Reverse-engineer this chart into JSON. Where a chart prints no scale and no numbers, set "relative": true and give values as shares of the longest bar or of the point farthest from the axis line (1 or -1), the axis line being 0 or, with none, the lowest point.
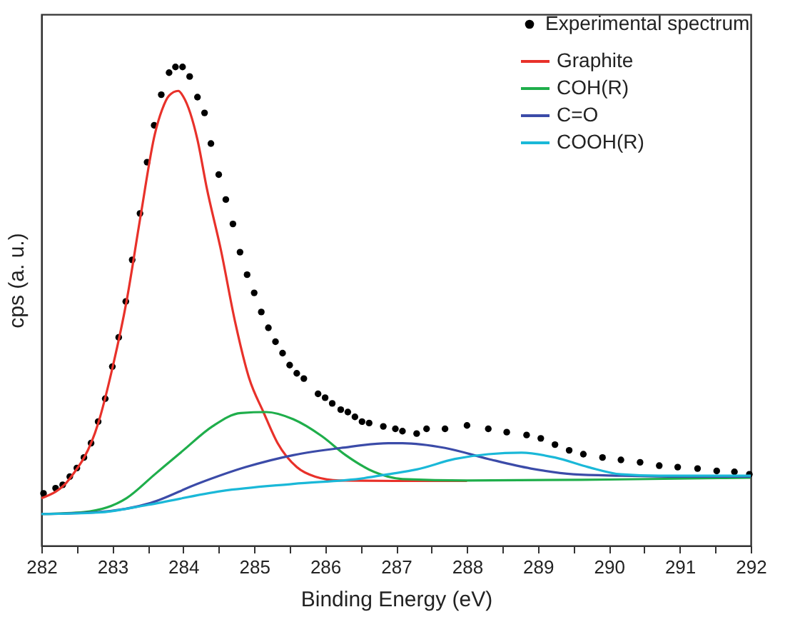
{
  "chart_data": {
    "type": "line",
    "relative": true,
    "xlabel": "Binding Energy (eV)",
    "ylabel": "cps (a. u.)",
    "xlim": [
      282,
      292
    ],
    "xticks": [
      282,
      {
        "value": 282.5,
        "label": null
      },
      283,
      {
        "value": 283.5,
        "label": null
      },
      284,
      {
        "value": 284.5,
        "label": null
      },
      285,
      {
        "value": 285.5,
        "label": null
      },
      286,
      {
        "value": 286.5,
        "label": null
      },
      287,
      {
        "value": 287.5,
        "label": null
      },
      288,
      {
        "value": 288.5,
        "label": null
      },
      289,
      {
        "value": 289.5,
        "label": null
      },
      290,
      {
        "value": 290.5,
        "label": null
      },
      291,
      {
        "value": 291.5,
        "label": null
      },
      292
    ],
    "tick_labels": "x",
    "grid": false,
    "legend": "top right",
    "marker": "none",
    "line_style": "solid",
    "series": [
      {
        "name": "Experimental spectrum",
        "type": "scatter",
        "marker": "circle",
        "color": "#000000",
        "x": [
          282.03,
          282.2,
          282.3,
          282.4,
          282.5,
          282.6,
          282.7,
          282.8,
          282.9,
          283.0,
          283.09,
          283.19,
          283.28,
          283.39,
          283.49,
          283.59,
          283.69,
          283.8,
          283.89,
          283.99,
          284.09,
          284.2,
          284.3,
          284.39,
          284.5,
          284.6,
          284.7,
          284.8,
          284.9,
          285.0,
          285.1,
          285.2,
          285.3,
          285.4,
          285.5,
          285.6,
          285.7,
          285.9,
          286.0,
          286.1,
          286.22,
          286.32,
          286.42,
          286.52,
          286.62,
          286.82,
          286.99,
          287.09,
          287.29,
          287.43,
          287.69,
          288.0,
          288.3,
          288.56,
          288.84,
          289.04,
          289.24,
          289.44,
          289.64,
          289.91,
          290.17,
          290.44,
          290.71,
          290.97,
          291.25,
          291.52,
          291.77,
          291.98
        ],
        "values": [
          0.109,
          0.12,
          0.127,
          0.144,
          0.162,
          0.184,
          0.214,
          0.259,
          0.307,
          0.374,
          0.435,
          0.51,
          0.597,
          0.694,
          0.801,
          0.878,
          0.942,
          0.988,
          1.0,
          1.0,
          0.98,
          0.937,
          0.904,
          0.84,
          0.775,
          0.723,
          0.672,
          0.613,
          0.566,
          0.528,
          0.488,
          0.455,
          0.426,
          0.402,
          0.377,
          0.36,
          0.349,
          0.317,
          0.309,
          0.297,
          0.284,
          0.279,
          0.269,
          0.259,
          0.256,
          0.249,
          0.244,
          0.239,
          0.234,
          0.244,
          0.244,
          0.251,
          0.244,
          0.237,
          0.231,
          0.224,
          0.211,
          0.199,
          0.191,
          0.184,
          0.179,
          0.174,
          0.167,
          0.164,
          0.161,
          0.156,
          0.154,
          0.149
        ]
      },
      {
        "name": "Graphite",
        "color": "#e8312a",
        "x": [
          282.0,
          282.4,
          282.8,
          283.0,
          283.2,
          283.4,
          283.6,
          283.7,
          283.8,
          283.93,
          284.0,
          284.2,
          284.33,
          284.53,
          284.73,
          284.93,
          285.13,
          285.33,
          285.6,
          285.86,
          286.2,
          287.0,
          288.0
        ],
        "values": [
          0.099,
          0.14,
          0.255,
          0.37,
          0.51,
          0.69,
          0.86,
          0.91,
          0.94,
          0.95,
          0.938,
          0.848,
          0.748,
          0.618,
          0.468,
          0.349,
          0.279,
          0.214,
          0.164,
          0.144,
          0.136,
          0.135,
          0.135
        ]
      },
      {
        "name": "COH(R)",
        "color": "#1fae4b",
        "x": [
          282.0,
          282.6,
          283.2,
          283.6,
          284.0,
          284.41,
          284.81,
          285.17,
          285.55,
          285.95,
          286.29,
          286.69,
          287.09,
          288.0,
          290.0,
          292.0
        ],
        "values": [
          0.066,
          0.07,
          0.099,
          0.149,
          0.199,
          0.249,
          0.277,
          0.279,
          0.264,
          0.229,
          0.189,
          0.154,
          0.139,
          0.136,
          0.138,
          0.142
        ]
      },
      {
        "name": "C=O",
        "color": "#3b4ba8",
        "x": [
          282.0,
          282.8,
          283.54,
          284.2,
          284.88,
          285.55,
          286.22,
          286.89,
          287.09,
          287.69,
          288.3,
          288.9,
          289.5,
          290.17,
          291.0,
          292.0
        ],
        "values": [
          0.066,
          0.07,
          0.089,
          0.129,
          0.164,
          0.189,
          0.204,
          0.214,
          0.214,
          0.204,
          0.181,
          0.161,
          0.149,
          0.146,
          0.144,
          0.144
        ]
      },
      {
        "name": "COOH(R)",
        "color": "#1ab8d8",
        "x": [
          282.0,
          282.8,
          283.5,
          284.54,
          285.55,
          286.55,
          286.89,
          287.29,
          287.83,
          288.3,
          288.77,
          289.24,
          289.71,
          290.17,
          290.71,
          292.0
        ],
        "values": [
          0.066,
          0.069,
          0.085,
          0.114,
          0.129,
          0.141,
          0.149,
          0.159,
          0.181,
          0.191,
          0.194,
          0.184,
          0.164,
          0.149,
          0.146,
          0.146
        ]
      }
    ]
  }
}
